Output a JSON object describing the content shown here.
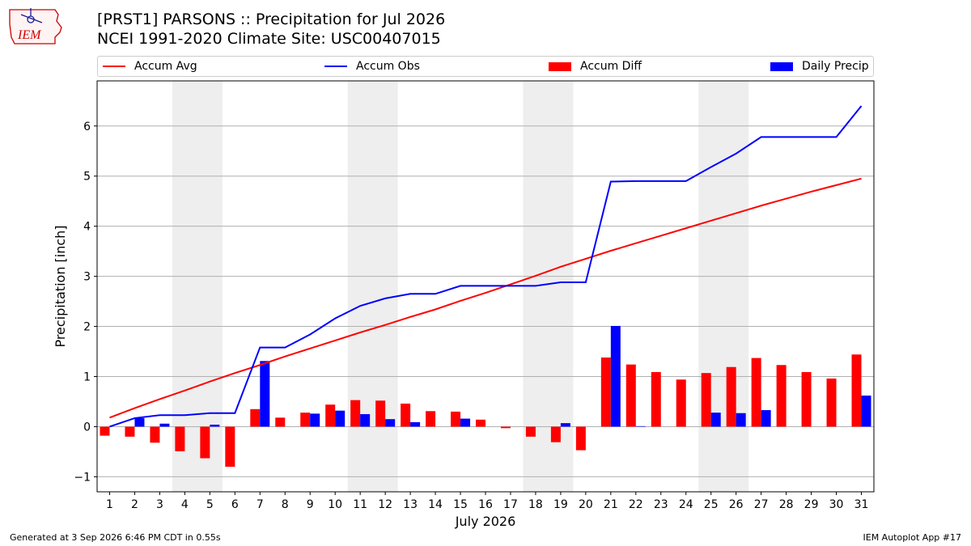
{
  "title": {
    "line1": "[PRST1] PARSONS :: Precipitation for Jul 2026",
    "line2": "NCEI 1991-2020 Climate Site: USC00407015"
  },
  "logo": {
    "text": "IEM",
    "color": "#cc0000"
  },
  "legend": [
    {
      "label": "Accum Avg",
      "kind": "line",
      "color": "#ff0000"
    },
    {
      "label": "Accum Obs",
      "kind": "line",
      "color": "#0000ff"
    },
    {
      "label": "Accum Diff",
      "kind": "bar",
      "color": "#ff0000"
    },
    {
      "label": "Daily Precip",
      "kind": "bar",
      "color": "#0000ff"
    }
  ],
  "footer": {
    "left": "Generated at 3 Sep 2026 6:46 PM CDT in 0.55s",
    "right": "IEM Autoplot App #17"
  },
  "chart_data": {
    "type": "bar",
    "xlabel": "July 2026",
    "ylabel": "Precipitation [inch]",
    "x": [
      1,
      2,
      3,
      4,
      5,
      6,
      7,
      8,
      9,
      10,
      11,
      12,
      13,
      14,
      15,
      16,
      17,
      18,
      19,
      20,
      21,
      22,
      23,
      24,
      25,
      26,
      27,
      28,
      29,
      30,
      31
    ],
    "ylim": [
      -1.3,
      6.9
    ],
    "yticks": [
      -1,
      0,
      1,
      2,
      3,
      4,
      5,
      6
    ],
    "grid": true,
    "weekend_shading": [
      [
        4,
        5
      ],
      [
        11,
        12
      ],
      [
        18,
        19
      ],
      [
        25,
        26
      ]
    ],
    "series": [
      {
        "name": "Accum Avg",
        "type": "line",
        "color": "#ff0000",
        "values": [
          0.18,
          0.37,
          0.55,
          0.72,
          0.9,
          1.07,
          1.23,
          1.4,
          1.56,
          1.72,
          1.88,
          2.03,
          2.19,
          2.34,
          2.51,
          2.67,
          2.84,
          3.01,
          3.19,
          3.35,
          3.51,
          3.66,
          3.81,
          3.96,
          4.11,
          4.26,
          4.41,
          4.55,
          4.69,
          4.82,
          4.95
        ]
      },
      {
        "name": "Accum Obs",
        "type": "line",
        "color": "#0000ff",
        "values": [
          0.0,
          0.17,
          0.23,
          0.23,
          0.27,
          0.27,
          1.58,
          1.58,
          1.84,
          2.16,
          2.41,
          2.56,
          2.65,
          2.65,
          2.81,
          2.81,
          2.81,
          2.81,
          2.88,
          2.88,
          4.89,
          4.9,
          4.9,
          4.9,
          5.18,
          5.45,
          5.78,
          5.78,
          5.78,
          5.78,
          6.4
        ]
      },
      {
        "name": "Accum Diff",
        "type": "bar",
        "color": "#ff0000",
        "values": [
          -0.18,
          -0.2,
          -0.32,
          -0.49,
          -0.63,
          -0.8,
          0.35,
          0.18,
          0.28,
          0.44,
          0.53,
          0.52,
          0.46,
          0.31,
          0.3,
          0.14,
          -0.03,
          -0.2,
          -0.31,
          -0.47,
          1.38,
          1.24,
          1.09,
          0.94,
          1.07,
          1.19,
          1.37,
          1.23,
          1.09,
          0.96,
          1.44
        ]
      },
      {
        "name": "Daily Precip",
        "type": "bar",
        "color": "#0000ff",
        "values": [
          0.0,
          0.17,
          0.06,
          0.0,
          0.04,
          0.0,
          1.31,
          0.0,
          0.26,
          0.32,
          0.25,
          0.15,
          0.09,
          0.0,
          0.16,
          0.0,
          0.0,
          0.0,
          0.07,
          0.0,
          2.01,
          0.01,
          0.0,
          0.0,
          0.28,
          0.27,
          0.33,
          0.0,
          0.0,
          0.0,
          0.62
        ]
      }
    ]
  }
}
